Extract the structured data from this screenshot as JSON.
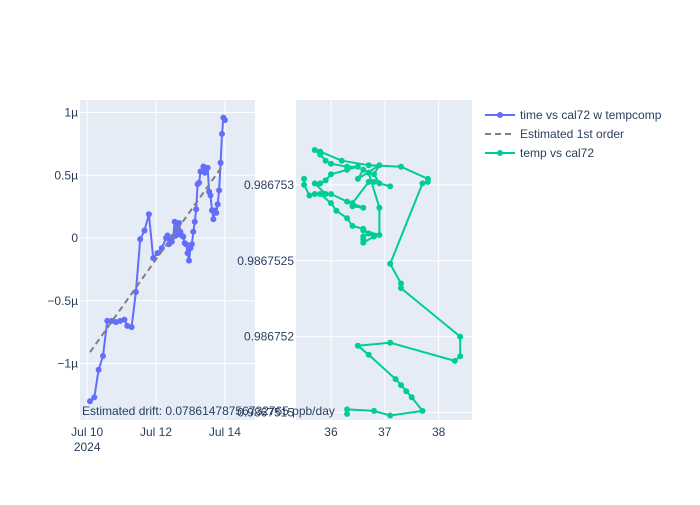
{
  "annotation": "Estimated drift:  0.07861478756732765 ppb/day",
  "legend": {
    "items": [
      {
        "label": "time vs cal72 w tempcomp",
        "kind": "line-marker",
        "color": "#636efa"
      },
      {
        "label": "Estimated 1st order",
        "kind": "dash",
        "color": "#7f7f7f"
      },
      {
        "label": "temp vs cal72",
        "kind": "line-marker",
        "color": "#00cc96"
      }
    ]
  },
  "chart_data": [
    {
      "type": "line",
      "name": "left",
      "x_axis": {
        "type": "date",
        "range": [
          "2024-07-09T19:00",
          "2024-07-14T21:00"
        ],
        "ticks": [
          {
            "value": "2024-07-10T00:00",
            "label": "Jul 10",
            "sublabel": "2024"
          },
          {
            "value": "2024-07-12T00:00",
            "label": "Jul 12"
          },
          {
            "value": "2024-07-14T00:00",
            "label": "Jul 14"
          }
        ]
      },
      "y_axis": {
        "range": [
          -1.45,
          1.1
        ],
        "ticks": [
          {
            "value": 1,
            "label": "1µ"
          },
          {
            "value": 0.5,
            "label": "0.5µ"
          },
          {
            "value": 0,
            "label": "0"
          },
          {
            "value": -0.5,
            "label": "−0.5µ"
          },
          {
            "value": -1,
            "label": "−1µ"
          }
        ]
      },
      "grid": true,
      "series": [
        {
          "name": "time vs cal72 w tempcomp",
          "color": "#636efa",
          "mode": "lines+markers",
          "points": [
            [
              "2024-07-10T02:00",
              -1.3
            ],
            [
              "2024-07-10T05:00",
              -1.27
            ],
            [
              "2024-07-10T08:00",
              -1.05
            ],
            [
              "2024-07-10T11:00",
              -0.94
            ],
            [
              "2024-07-10T14:00",
              -0.66
            ],
            [
              "2024-07-10T17:00",
              -0.66
            ],
            [
              "2024-07-10T20:00",
              -0.67
            ],
            [
              "2024-07-10T23:00",
              -0.66
            ],
            [
              "2024-07-11T02:00",
              -0.65
            ],
            [
              "2024-07-11T04:00",
              -0.7
            ],
            [
              "2024-07-11T07:00",
              -0.71
            ],
            [
              "2024-07-11T10:00",
              -0.43
            ],
            [
              "2024-07-11T13:00",
              -0.01
            ],
            [
              "2024-07-11T16:00",
              0.06
            ],
            [
              "2024-07-11T19:00",
              0.19
            ],
            [
              "2024-07-11T22:00",
              -0.16
            ],
            [
              "2024-07-12T01:00",
              -0.12
            ],
            [
              "2024-07-12T04:00",
              -0.08
            ],
            [
              "2024-07-12T07:00",
              0.0
            ],
            [
              "2024-07-12T08:00",
              0.02
            ],
            [
              "2024-07-12T09:00",
              -0.05
            ],
            [
              "2024-07-12T10:00",
              -0.02
            ],
            [
              "2024-07-12T11:00",
              -0.03
            ],
            [
              "2024-07-12T12:00",
              0.01
            ],
            [
              "2024-07-12T13:00",
              0.13
            ],
            [
              "2024-07-12T14:00",
              0.02
            ],
            [
              "2024-07-12T15:00",
              0.09
            ],
            [
              "2024-07-12T16:00",
              0.12
            ],
            [
              "2024-07-12T17:00",
              0.05
            ],
            [
              "2024-07-12T18:00",
              0.02
            ],
            [
              "2024-07-12T19:00",
              0.01
            ],
            [
              "2024-07-12T20:00",
              -0.04
            ],
            [
              "2024-07-12T21:00",
              -0.05
            ],
            [
              "2024-07-12T22:00",
              -0.12
            ],
            [
              "2024-07-12T23:00",
              -0.18
            ],
            [
              "2024-07-13T00:00",
              -0.08
            ],
            [
              "2024-07-13T01:00",
              -0.05
            ],
            [
              "2024-07-13T02:00",
              0.05
            ],
            [
              "2024-07-13T03:00",
              0.13
            ],
            [
              "2024-07-13T04:00",
              0.23
            ],
            [
              "2024-07-13T05:00",
              0.43
            ],
            [
              "2024-07-13T06:00",
              0.44
            ],
            [
              "2024-07-13T07:00",
              0.53
            ],
            [
              "2024-07-13T09:00",
              0.57
            ],
            [
              "2024-07-13T10:00",
              0.52
            ],
            [
              "2024-07-13T11:00",
              0.55
            ],
            [
              "2024-07-13T12:00",
              0.56
            ],
            [
              "2024-07-13T13:00",
              0.37
            ],
            [
              "2024-07-13T14:00",
              0.34
            ],
            [
              "2024-07-13T15:00",
              0.22
            ],
            [
              "2024-07-13T16:00",
              0.15
            ],
            [
              "2024-07-13T17:00",
              0.22
            ],
            [
              "2024-07-13T18:00",
              0.2
            ],
            [
              "2024-07-13T19:00",
              0.27
            ],
            [
              "2024-07-13T20:00",
              0.38
            ],
            [
              "2024-07-13T21:00",
              0.6
            ],
            [
              "2024-07-13T22:00",
              0.83
            ],
            [
              "2024-07-13T23:00",
              0.96
            ],
            [
              "2024-07-14T00:00",
              0.94
            ]
          ]
        },
        {
          "name": "Estimated 1st order",
          "color": "#7f7f7f",
          "mode": "dash",
          "points": [
            [
              "2024-07-10T02:00",
              -0.91
            ],
            [
              "2024-07-13T22:00",
              0.57
            ]
          ]
        }
      ]
    },
    {
      "type": "line",
      "name": "right",
      "x_axis": {
        "range": [
          35.35,
          38.62
        ],
        "ticks": [
          {
            "value": 36,
            "label": "36"
          },
          {
            "value": 37,
            "label": "37"
          },
          {
            "value": 38,
            "label": "38"
          }
        ]
      },
      "y_axis": {
        "range": [
          0.98675145,
          0.98675356
        ],
        "ticks": [
          {
            "value": 0.986753,
            "label": "0.986753"
          },
          {
            "value": 0.9867525,
            "label": "0.9867525"
          },
          {
            "value": 0.986752,
            "label": "0.986752"
          },
          {
            "value": 0.9867515,
            "label": "0.9867515"
          }
        ]
      },
      "grid": true,
      "series": [
        {
          "name": "temp vs cal72",
          "color": "#00cc96",
          "mode": "lines+markers",
          "points": [
            [
              35.5,
              0.98675304
            ],
            [
              35.5,
              0.986753
            ],
            [
              35.6,
              0.98675293
            ],
            [
              35.7,
              0.98675294
            ],
            [
              35.8,
              0.98675294
            ],
            [
              36.0,
              0.98675288
            ],
            [
              36.1,
              0.98675283
            ],
            [
              36.3,
              0.98675278
            ],
            [
              36.4,
              0.98675273
            ],
            [
              36.6,
              0.98675271
            ],
            [
              36.7,
              0.98675268
            ],
            [
              36.8,
              0.98675266
            ],
            [
              36.6,
              0.98675262
            ],
            [
              36.6,
              0.98675264
            ],
            [
              36.6,
              0.98675266
            ],
            [
              36.7,
              0.98675268
            ],
            [
              36.6,
              0.9867527
            ],
            [
              36.9,
              0.98675267
            ],
            [
              36.9,
              0.98675285
            ],
            [
              36.7,
              0.98675308
            ],
            [
              36.6,
              0.9867531
            ],
            [
              36.5,
              0.98675304
            ],
            [
              36.9,
              0.98675313
            ],
            [
              36.8,
              0.98675307
            ],
            [
              36.9,
              0.98675301
            ],
            [
              37.1,
              0.98675299
            ],
            [
              36.8,
              0.98675302
            ],
            [
              36.7,
              0.98675302
            ],
            [
              36.4,
              0.98675288
            ],
            [
              36.4,
              0.98675286
            ],
            [
              36.6,
              0.98675285
            ],
            [
              36.3,
              0.98675289
            ],
            [
              36.0,
              0.98675294
            ],
            [
              35.9,
              0.98675294
            ],
            [
              35.7,
              0.98675301
            ],
            [
              35.8,
              0.98675301
            ],
            [
              35.9,
              0.98675303
            ],
            [
              36.0,
              0.98675307
            ],
            [
              36.3,
              0.9867531
            ],
            [
              36.5,
              0.98675312
            ],
            [
              36.3,
              0.98675312
            ],
            [
              36.0,
              0.98675314
            ],
            [
              35.9,
              0.98675316
            ],
            [
              35.8,
              0.9867532
            ],
            [
              35.7,
              0.98675323
            ],
            [
              35.8,
              0.98675322
            ],
            [
              36.2,
              0.98675316
            ],
            [
              36.7,
              0.98675313
            ],
            [
              37.3,
              0.98675312
            ],
            [
              37.8,
              0.98675304
            ],
            [
              37.8,
              0.98675302
            ],
            [
              37.7,
              0.98675301
            ],
            [
              37.1,
              0.98675248
            ],
            [
              37.3,
              0.98675235
            ],
            [
              37.3,
              0.98675232
            ],
            [
              38.4,
              0.986752
            ],
            [
              38.4,
              0.98675187
            ],
            [
              38.3,
              0.98675184
            ],
            [
              37.1,
              0.98675196
            ],
            [
              36.5,
              0.98675194
            ],
            [
              36.7,
              0.98675188
            ],
            [
              37.2,
              0.98675172
            ],
            [
              37.3,
              0.98675168
            ],
            [
              37.4,
              0.98675164
            ],
            [
              37.5,
              0.9867516
            ],
            [
              37.7,
              0.98675151
            ],
            [
              37.1,
              0.98675148
            ],
            [
              36.8,
              0.98675151
            ],
            [
              36.3,
              0.98675152
            ],
            [
              36.3,
              0.98675149
            ]
          ]
        }
      ]
    }
  ]
}
